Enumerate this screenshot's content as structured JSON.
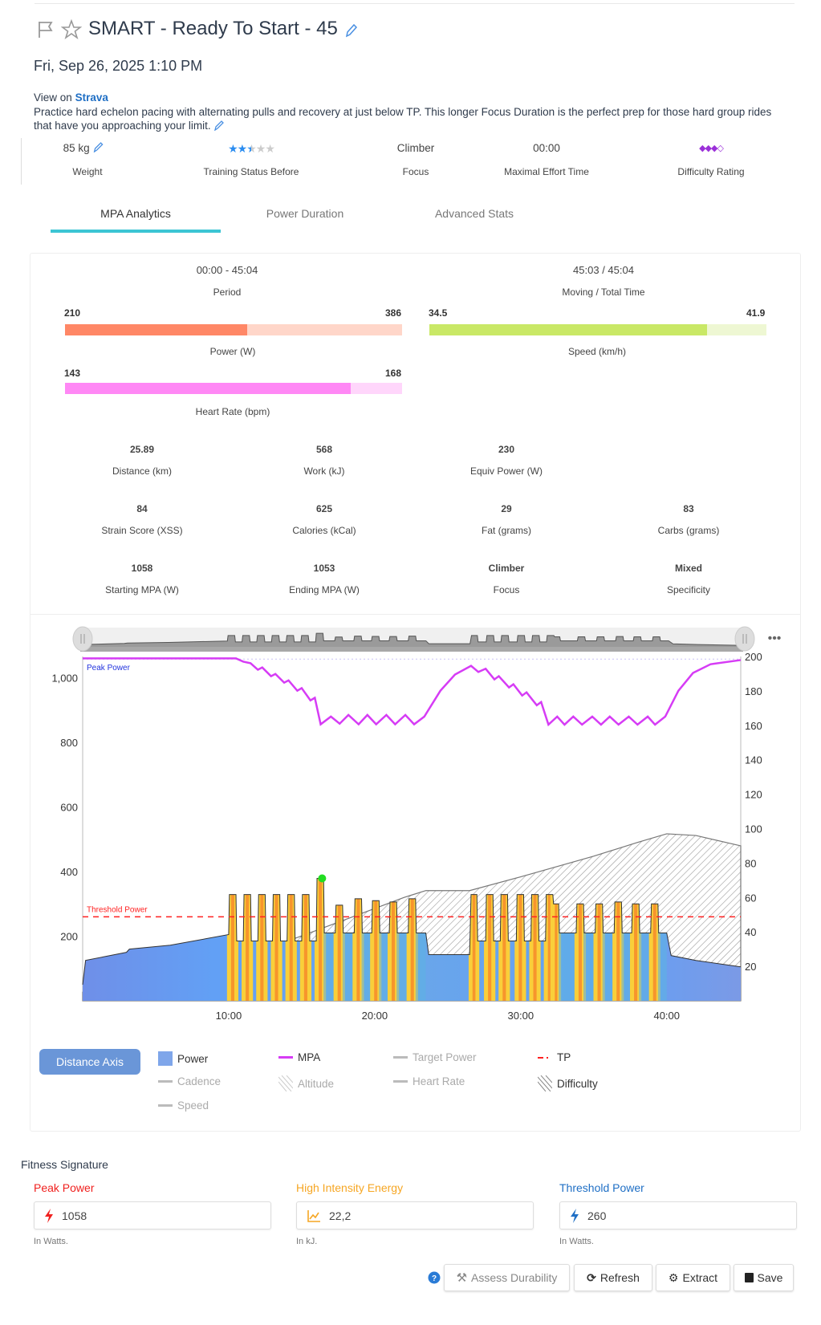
{
  "header": {
    "title": "SMART - Ready To Start - 45",
    "date": "Fri, Sep 26, 2025 1:10 PM",
    "view_on": "View on",
    "strava": "Strava",
    "description": "Practice hard echelon pacing with alternating pulls and recovery at just below TP. This longer Focus Duration is the perfect prep for those hard group rides that have you approaching your limit."
  },
  "summary": [
    {
      "value": "85 kg",
      "label": "Weight"
    },
    {
      "value": "",
      "label": "Training Status Before",
      "stars": 2.5,
      "max_stars": 5
    },
    {
      "value": "Climber",
      "label": "Focus"
    },
    {
      "value": "00:00",
      "label": "Maximal Effort Time"
    },
    {
      "value": "",
      "label": "Difficulty Rating",
      "diamonds": 3.5,
      "max_diamonds": 4
    }
  ],
  "tabs": [
    {
      "label": "MPA Analytics",
      "active": true
    },
    {
      "label": "Power Duration",
      "active": false
    },
    {
      "label": "Advanced Stats",
      "active": false
    }
  ],
  "analytics": {
    "period": {
      "value": "00:00 - 45:04",
      "label": "Period"
    },
    "moving": {
      "value": "45:03 / 45:04",
      "label": "Moving / Total Time"
    },
    "power": {
      "min": "210",
      "max": "386",
      "label": "Power (W)",
      "fill": 0.54,
      "color": "#ff8766",
      "bg": "#ffd6c9"
    },
    "speed": {
      "min": "34.5",
      "max": "41.9",
      "label": "Speed (km/h)",
      "fill": 0.824,
      "color": "#c9e866",
      "bg": "#eef7d3"
    },
    "hr": {
      "min": "143",
      "max": "168",
      "label": "Heart Rate (bpm)",
      "fill": 0.848,
      "color": "#ff88f5",
      "bg": "#ffd6fb"
    },
    "stats": [
      [
        {
          "value": "25.89",
          "label": "Distance (km)"
        },
        {
          "value": "568",
          "label": "Work (kJ)"
        },
        {
          "value": "230",
          "label": "Equiv Power (W)"
        }
      ],
      [
        {
          "value": "84",
          "label": "Strain Score (XSS)"
        },
        {
          "value": "625",
          "label": "Calories (kCal)"
        },
        {
          "value": "29",
          "label": "Fat (grams)"
        },
        {
          "value": "83",
          "label": "Carbs (grams)"
        }
      ],
      [
        {
          "value": "1058",
          "label": "Starting MPA (W)"
        },
        {
          "value": "1053",
          "label": "Ending MPA (W)"
        },
        {
          "value": "Climber",
          "label": "Focus",
          "bold": true
        },
        {
          "value": "Mixed",
          "label": "Specificity",
          "bold": true
        }
      ]
    ]
  },
  "chart_data": {
    "type": "area",
    "x_ticks": [
      "10:00",
      "20:00",
      "30:00",
      "40:00"
    ],
    "x_tick_values_min": [
      10,
      20,
      30,
      40
    ],
    "xlim_min": [
      0,
      45.07
    ],
    "y_left_ticks": [
      "200",
      "400",
      "600",
      "800",
      "1,000"
    ],
    "y_left_tick_values": [
      200,
      400,
      600,
      800,
      1000
    ],
    "ylim_left": [
      0,
      1066
    ],
    "y_right_ticks": [
      "20",
      "40",
      "60",
      "80",
      "100",
      "120",
      "140",
      "160",
      "180",
      "200"
    ],
    "ylim_right": [
      0,
      200
    ],
    "annotations": {
      "peak_power": "Peak Power",
      "threshold_power": "Threshold Power"
    },
    "peak_power": 1058,
    "threshold_power": 260,
    "peak_marker": [
      16.4,
      379
    ],
    "colors": {
      "power": "#5f97f0",
      "power_above_tp": "#f7952c",
      "power_edge": "#f9cf3a",
      "mpa": "#d63cf5",
      "tp": "#ff2020",
      "peak_marker": "#22dd22"
    },
    "series": [
      {
        "name": "Power",
        "axis": "left",
        "points": [
          [
            0,
            50
          ],
          [
            0.2,
            125
          ],
          [
            3,
            150
          ],
          [
            3.2,
            160
          ],
          [
            6,
            172
          ],
          [
            10,
            205
          ],
          [
            10.05,
            329
          ],
          [
            10.5,
            329
          ],
          [
            10.55,
            185
          ],
          [
            11.0,
            185
          ],
          [
            11.05,
            329
          ],
          [
            11.5,
            329
          ],
          [
            11.55,
            185
          ],
          [
            12.0,
            185
          ],
          [
            12.05,
            329
          ],
          [
            12.5,
            329
          ],
          [
            12.55,
            185
          ],
          [
            13.0,
            185
          ],
          [
            13.05,
            329
          ],
          [
            13.5,
            329
          ],
          [
            13.55,
            185
          ],
          [
            14.0,
            185
          ],
          [
            14.05,
            329
          ],
          [
            14.5,
            329
          ],
          [
            14.55,
            185
          ],
          [
            15.0,
            185
          ],
          [
            15.05,
            329
          ],
          [
            15.5,
            329
          ],
          [
            15.55,
            185
          ],
          [
            16.0,
            185
          ],
          [
            16.05,
            379
          ],
          [
            16.5,
            379
          ],
          [
            16.55,
            210
          ],
          [
            17.3,
            210
          ],
          [
            17.35,
            296
          ],
          [
            17.8,
            296
          ],
          [
            17.85,
            210
          ],
          [
            18.6,
            210
          ],
          [
            18.65,
            316
          ],
          [
            19.1,
            316
          ],
          [
            19.15,
            210
          ],
          [
            19.8,
            210
          ],
          [
            19.85,
            310
          ],
          [
            20.3,
            310
          ],
          [
            20.35,
            210
          ],
          [
            21.0,
            210
          ],
          [
            21.05,
            306
          ],
          [
            21.5,
            306
          ],
          [
            21.55,
            210
          ],
          [
            22.3,
            210
          ],
          [
            22.35,
            316
          ],
          [
            22.8,
            316
          ],
          [
            22.85,
            210
          ],
          [
            23.5,
            210
          ],
          [
            23.7,
            143
          ],
          [
            26.5,
            143
          ],
          [
            26.6,
            329
          ],
          [
            27.0,
            329
          ],
          [
            27.05,
            185
          ],
          [
            27.6,
            185
          ],
          [
            27.65,
            329
          ],
          [
            28.1,
            329
          ],
          [
            28.15,
            185
          ],
          [
            28.6,
            185
          ],
          [
            28.65,
            329
          ],
          [
            29.1,
            329
          ],
          [
            29.15,
            185
          ],
          [
            29.7,
            185
          ],
          [
            29.75,
            329
          ],
          [
            30.2,
            329
          ],
          [
            30.25,
            185
          ],
          [
            30.7,
            185
          ],
          [
            30.75,
            329
          ],
          [
            31.2,
            329
          ],
          [
            31.25,
            185
          ],
          [
            31.7,
            185
          ],
          [
            31.75,
            329
          ],
          [
            32.2,
            329
          ],
          [
            32.25,
            300
          ],
          [
            32.6,
            300
          ],
          [
            32.65,
            210
          ],
          [
            33.8,
            210
          ],
          [
            33.85,
            300
          ],
          [
            34.3,
            300
          ],
          [
            34.35,
            210
          ],
          [
            35.1,
            210
          ],
          [
            35.15,
            300
          ],
          [
            35.6,
            300
          ],
          [
            35.65,
            210
          ],
          [
            36.4,
            210
          ],
          [
            36.45,
            306
          ],
          [
            36.9,
            306
          ],
          [
            36.95,
            210
          ],
          [
            37.6,
            210
          ],
          [
            37.65,
            300
          ],
          [
            38.1,
            300
          ],
          [
            38.15,
            210
          ],
          [
            38.9,
            210
          ],
          [
            38.95,
            300
          ],
          [
            39.4,
            300
          ],
          [
            39.45,
            210
          ],
          [
            40.0,
            210
          ],
          [
            40.3,
            140
          ],
          [
            42,
            125
          ],
          [
            45.07,
            105
          ]
        ]
      },
      {
        "name": "MPA",
        "axis": "left",
        "points": [
          [
            0,
            1060
          ],
          [
            10.5,
            1060
          ],
          [
            11,
            1050
          ],
          [
            11.5,
            1045
          ],
          [
            12,
            1025
          ],
          [
            12.3,
            1032
          ],
          [
            12.9,
            1005
          ],
          [
            13.2,
            1012
          ],
          [
            13.8,
            985
          ],
          [
            14.1,
            992
          ],
          [
            14.7,
            960
          ],
          [
            15,
            968
          ],
          [
            15.6,
            930
          ],
          [
            15.9,
            938
          ],
          [
            16.3,
            856
          ],
          [
            17,
            880
          ],
          [
            17.6,
            858
          ],
          [
            18.2,
            885
          ],
          [
            18.9,
            856
          ],
          [
            19.5,
            885
          ],
          [
            20.1,
            856
          ],
          [
            20.8,
            885
          ],
          [
            21.4,
            856
          ],
          [
            22.1,
            885
          ],
          [
            22.7,
            856
          ],
          [
            23.4,
            880
          ],
          [
            24.5,
            960
          ],
          [
            25.5,
            1010
          ],
          [
            26.6,
            1037
          ],
          [
            27.1,
            1018
          ],
          [
            27.6,
            1028
          ],
          [
            28.2,
            995
          ],
          [
            28.5,
            1005
          ],
          [
            29.2,
            970
          ],
          [
            29.5,
            980
          ],
          [
            30.1,
            945
          ],
          [
            30.4,
            955
          ],
          [
            31.1,
            915
          ],
          [
            31.4,
            925
          ],
          [
            31.9,
            855
          ],
          [
            32.5,
            880
          ],
          [
            33.0,
            855
          ],
          [
            33.6,
            880
          ],
          [
            34.2,
            855
          ],
          [
            34.9,
            880
          ],
          [
            35.5,
            855
          ],
          [
            36.1,
            880
          ],
          [
            36.7,
            855
          ],
          [
            37.4,
            880
          ],
          [
            38.0,
            855
          ],
          [
            38.7,
            880
          ],
          [
            39.2,
            855
          ],
          [
            39.9,
            880
          ],
          [
            40.8,
            960
          ],
          [
            41.8,
            1015
          ],
          [
            43,
            1042
          ],
          [
            45.07,
            1055
          ]
        ]
      },
      {
        "name": "Difficulty",
        "axis": "right",
        "points": [
          [
            0,
            5
          ],
          [
            10,
            22
          ],
          [
            17,
            44
          ],
          [
            22,
            60
          ],
          [
            23.5,
            64
          ],
          [
            26.5,
            64
          ],
          [
            30,
            72
          ],
          [
            35,
            84
          ],
          [
            38,
            92
          ],
          [
            40,
            97
          ],
          [
            42,
            96
          ],
          [
            45.07,
            90
          ]
        ]
      }
    ]
  },
  "legend": {
    "distance_axis": "Distance Axis",
    "items": [
      {
        "label": "Power",
        "active": true,
        "icon": "square",
        "color": "#7fa6ea"
      },
      {
        "label": "MPA",
        "active": true,
        "icon": "line",
        "color": "#d63cf5"
      },
      {
        "label": "Target Power",
        "active": false,
        "icon": "line",
        "color": "#bbb"
      },
      {
        "label": "TP",
        "active": true,
        "icon": "dash",
        "color": "#ff2020"
      },
      {
        "label": "Cadence",
        "active": false,
        "icon": "line",
        "color": "#bbb"
      },
      {
        "label": "Altitude",
        "active": false,
        "icon": "hatch",
        "color": "#ccc"
      },
      {
        "label": "Heart Rate",
        "active": false,
        "icon": "line",
        "color": "#bbb"
      },
      {
        "label": "Difficulty",
        "active": true,
        "icon": "hatch",
        "color": "#888"
      },
      {
        "label": "Speed",
        "active": false,
        "icon": "line",
        "color": "#bbb"
      }
    ]
  },
  "fitness": {
    "title": "Fitness Signature",
    "fields": [
      {
        "label": "Peak Power",
        "value": "1058",
        "help": "In Watts.",
        "color": "#f0201e",
        "icon": "bolt-icon"
      },
      {
        "label": "High Intensity Energy",
        "value": "22,2",
        "help": "In kJ.",
        "color": "#f6a623",
        "icon": "chart-icon"
      },
      {
        "label": "Threshold Power",
        "value": "260",
        "help": "In Watts.",
        "color": "#1f6fc5",
        "icon": "bolt-icon"
      }
    ]
  },
  "actions": {
    "assess": "Assess Durability",
    "refresh": "Refresh",
    "extract": "Extract",
    "save": "Save"
  }
}
